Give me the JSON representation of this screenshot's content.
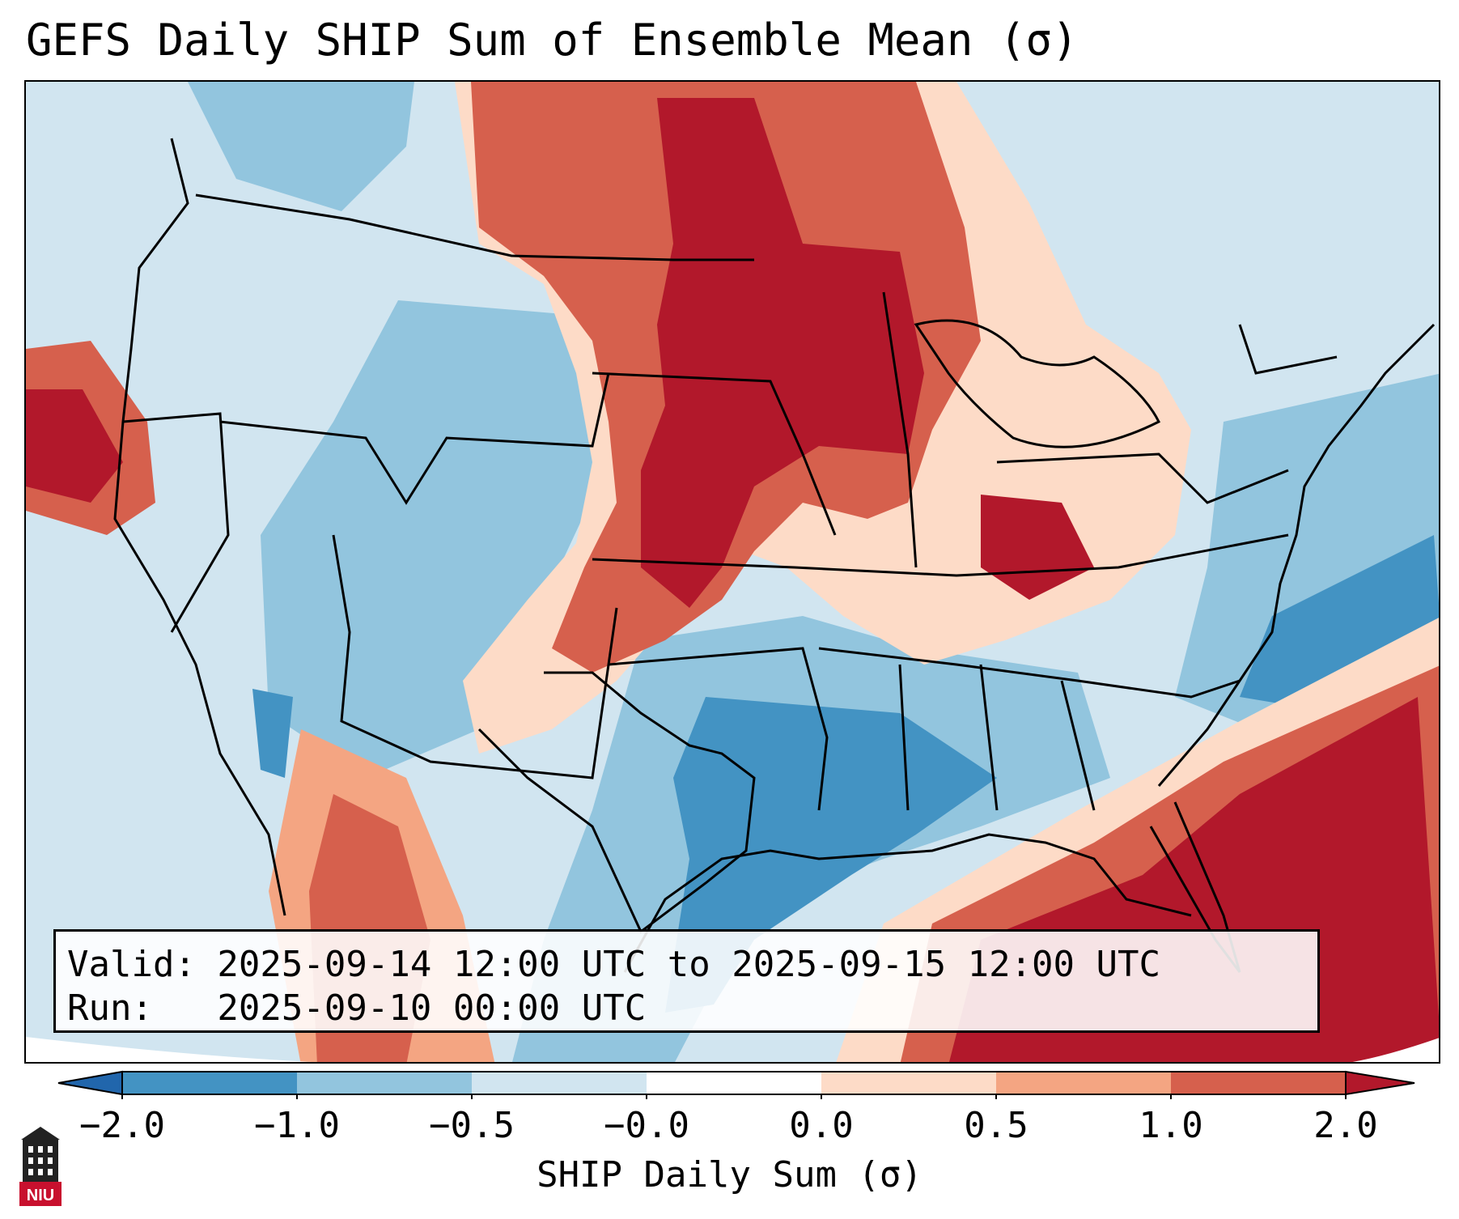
{
  "header": {
    "title": "GEFS Daily SHIP Sum of Ensemble Mean (σ)"
  },
  "info": {
    "valid_line": "Valid: 2025-09-14 12:00 UTC to 2025-09-15 12:00 UTC",
    "run_line": "Run:   2025-09-10 00:00 UTC"
  },
  "colorbar": {
    "label": "SHIP Daily Sum (σ)",
    "ticks": [
      "−2.0",
      "−1.0",
      "−0.5",
      "−0.0",
      "0.0",
      "0.5",
      "1.0",
      "2.0"
    ],
    "colors": [
      "#4393c3",
      "#92c5de",
      "#d1e5f0",
      "#ffffff",
      "#fddbc7",
      "#f4a582",
      "#d6604d",
      "#b2182b"
    ],
    "extend_low_color": "#2166ac",
    "extend_high_color": "#b2182b"
  },
  "logo": {
    "text": "NIU",
    "icon": "niu-tower-icon",
    "color": "#c8102e"
  },
  "map": {
    "ocean_color": "#d1e5f0",
    "land_outline_color": "#000000"
  }
}
